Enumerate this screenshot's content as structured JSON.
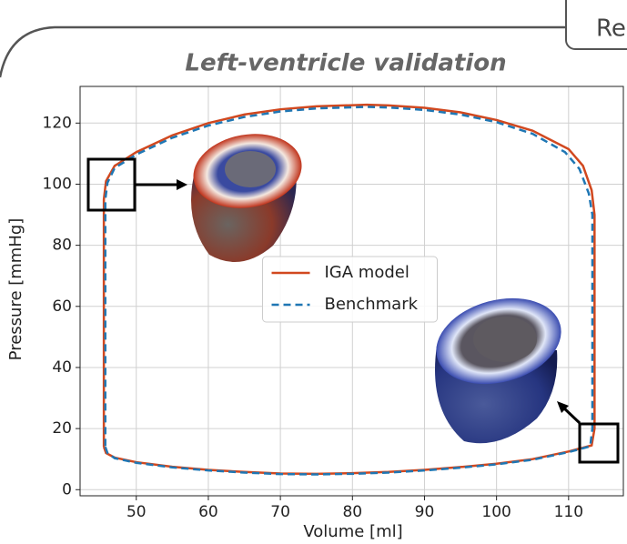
{
  "tab": {
    "label": "Re"
  },
  "chart_data": {
    "type": "line",
    "title": "Left-ventricle validation",
    "x_label": "Volume [ml]",
    "y_label": "Pressure [mmHg]",
    "xlim": [
      42.2,
      117.6
    ],
    "ylim": [
      -2,
      132
    ],
    "xticks": [
      50,
      60,
      70,
      80,
      90,
      100,
      110
    ],
    "yticks": [
      0,
      20,
      40,
      60,
      80,
      100,
      120
    ],
    "grid": true,
    "legend": "center",
    "series": [
      {
        "name": "IGA model",
        "color": "#d1481f",
        "linestyle": "solid",
        "x": [
          45.5,
          45.8,
          47,
          50,
          55,
          60,
          65,
          70,
          75,
          80,
          85,
          90,
          95,
          100,
          105,
          110,
          113.2,
          113.6,
          113.6,
          113.6,
          113.2,
          112,
          110,
          105,
          100,
          95,
          90,
          85,
          82,
          75,
          70,
          65,
          60,
          55,
          50,
          47,
          45.8,
          45.5,
          45.5,
          45.5
        ],
        "values": [
          14,
          12,
          10.5,
          9,
          7.5,
          6.5,
          5.8,
          5.3,
          5.2,
          5.4,
          5.8,
          6.5,
          7.4,
          8.5,
          10,
          12.5,
          14.5,
          20,
          60,
          90,
          98,
          106,
          111.5,
          117.5,
          121,
          123.5,
          125,
          125.8,
          126,
          125.5,
          124.5,
          122.8,
          120,
          116,
          110.5,
          106,
          101,
          95,
          50,
          14
        ]
      },
      {
        "name": "Benchmark",
        "color": "#1f77b4",
        "linestyle": "dashed",
        "x": [
          45.7,
          46,
          47,
          50,
          55,
          60,
          65,
          70,
          75,
          80,
          85,
          90,
          95,
          100,
          105,
          110,
          113,
          113.3,
          113.3,
          113.3,
          112.8,
          111.5,
          109.5,
          105,
          100,
          95,
          90,
          85,
          82,
          75,
          70,
          65,
          60,
          55,
          50,
          47,
          46,
          45.7,
          45.7,
          45.7
        ],
        "values": [
          14,
          12,
          10.3,
          8.8,
          7.3,
          6.3,
          5.6,
          5.1,
          5,
          5.2,
          5.6,
          6.3,
          7.2,
          8.3,
          9.8,
          12.3,
          14.2,
          20,
          60,
          90,
          97,
          105,
          110.5,
          116.5,
          120.3,
          122.8,
          124.3,
          125.1,
          125.3,
          124.8,
          123.8,
          122,
          119.2,
          115.2,
          109.7,
          105.3,
          100.5,
          95,
          50,
          14
        ]
      }
    ]
  }
}
